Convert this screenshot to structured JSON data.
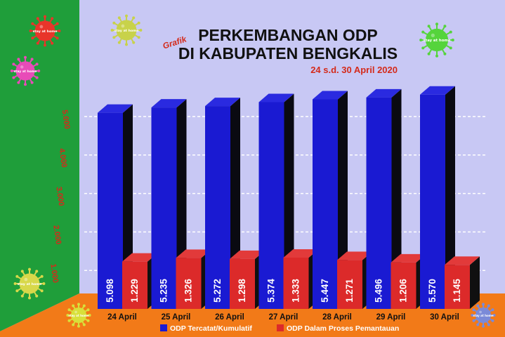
{
  "header": {
    "tag": "Grafik",
    "title_line1": "PERKEMBANGAN ODP",
    "title_line2": "DI KABUPATEN BENGKALIS",
    "subtitle": "24 s.d. 30 April 2020"
  },
  "decor": {
    "virus_label": "stay at home",
    "virus_colors": [
      "#e8352a",
      "#e84bb8",
      "#c8d24a",
      "#55d43c",
      "#d8d84a",
      "#d8e03a",
      "#7a8ad8"
    ]
  },
  "colors": {
    "left_panel": "#1f9e3a",
    "plot_bg": "#c8c8f4",
    "floor": "#f27a18",
    "tick_text": "#d42a1a",
    "bar_blue": "#1a1ad2",
    "bar_blue_side": "#0a0a12",
    "bar_red": "#dc2a2a",
    "bar_red_side": "#101010",
    "value_text": "#ffffff"
  },
  "chart_data": {
    "type": "bar",
    "title": "PERKEMBANGAN ODP DI KABUPATEN BENGKALIS",
    "subtitle": "24 s.d. 30 April 2020",
    "categories": [
      "24 April",
      "25 April",
      "26 April",
      "27 April",
      "28 April",
      "29 April",
      "30 April"
    ],
    "series": [
      {
        "name": "ODP Tercatat/Kumulatif",
        "values": [
          5098,
          5235,
          5272,
          5374,
          5447,
          5496,
          5570
        ],
        "labels": [
          "5.098",
          "5.235",
          "5.272",
          "5.374",
          "5.447",
          "5.496",
          "5.570"
        ]
      },
      {
        "name": "ODP Dalam Proses Pemantauan",
        "values": [
          1229,
          1326,
          1298,
          1333,
          1271,
          1206,
          1145
        ],
        "labels": [
          "1.229",
          "1.326",
          "1.298",
          "1.333",
          "1.271",
          "1.206",
          "1.145"
        ]
      }
    ],
    "yticks": [
      1000,
      2000,
      3000,
      4000,
      5000
    ],
    "ytick_labels": [
      "1.000",
      "2.000",
      "3.000",
      "4.000",
      "5.000"
    ],
    "ylim": [
      0,
      5500
    ],
    "grid": true,
    "legend_position": "bottom",
    "chart_style": "3d-column"
  }
}
